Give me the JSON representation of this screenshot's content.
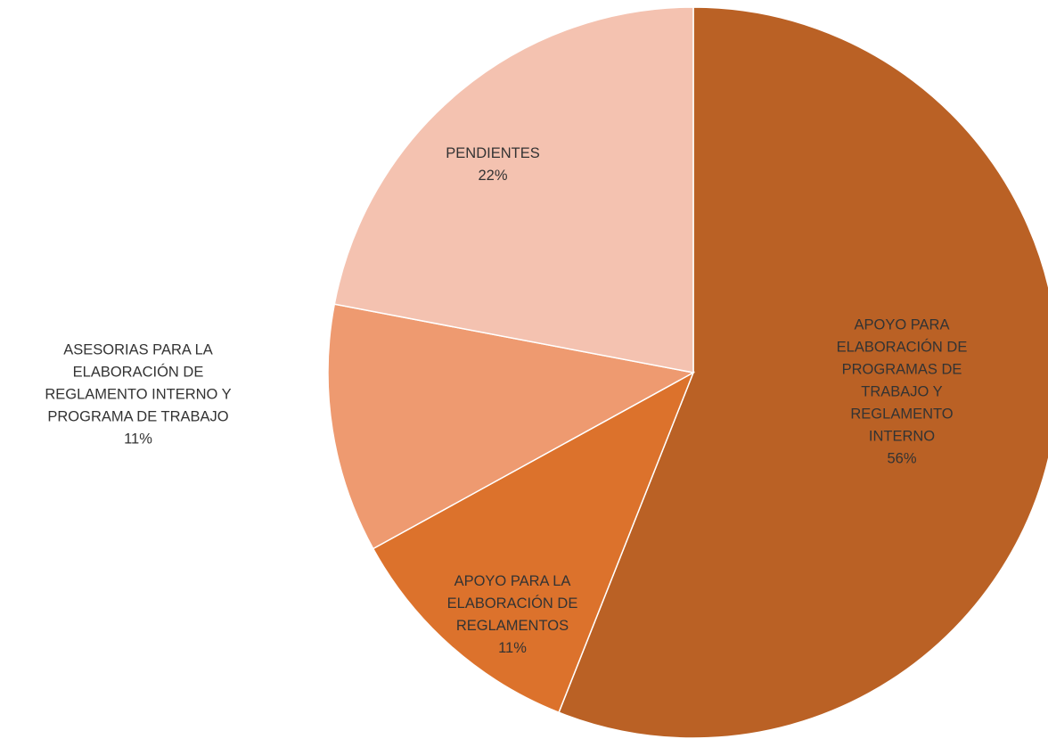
{
  "chart_data": {
    "type": "pie",
    "categories": [
      "APOYO PARA ELABORACIÓN DE\nPROGRAMAS DE TRABAJO Y\nREGLAMENTO INTERNO",
      "APOYO PARA LA\nELABORACIÓN DE\nREGLAMENTOS",
      "ASESORIAS PARA LA\nELABORACIÓN DE\nREGLAMENTO INTERNO Y\nPROGRAMA DE TRABAJO",
      "PENDIENTES"
    ],
    "values": [
      56,
      11,
      11,
      22
    ],
    "value_labels": [
      "56%",
      "11%",
      "11%",
      "22%"
    ],
    "colors": [
      "#BA6125",
      "#DC722C",
      "#EE9A70",
      "#F4C2B0"
    ]
  }
}
